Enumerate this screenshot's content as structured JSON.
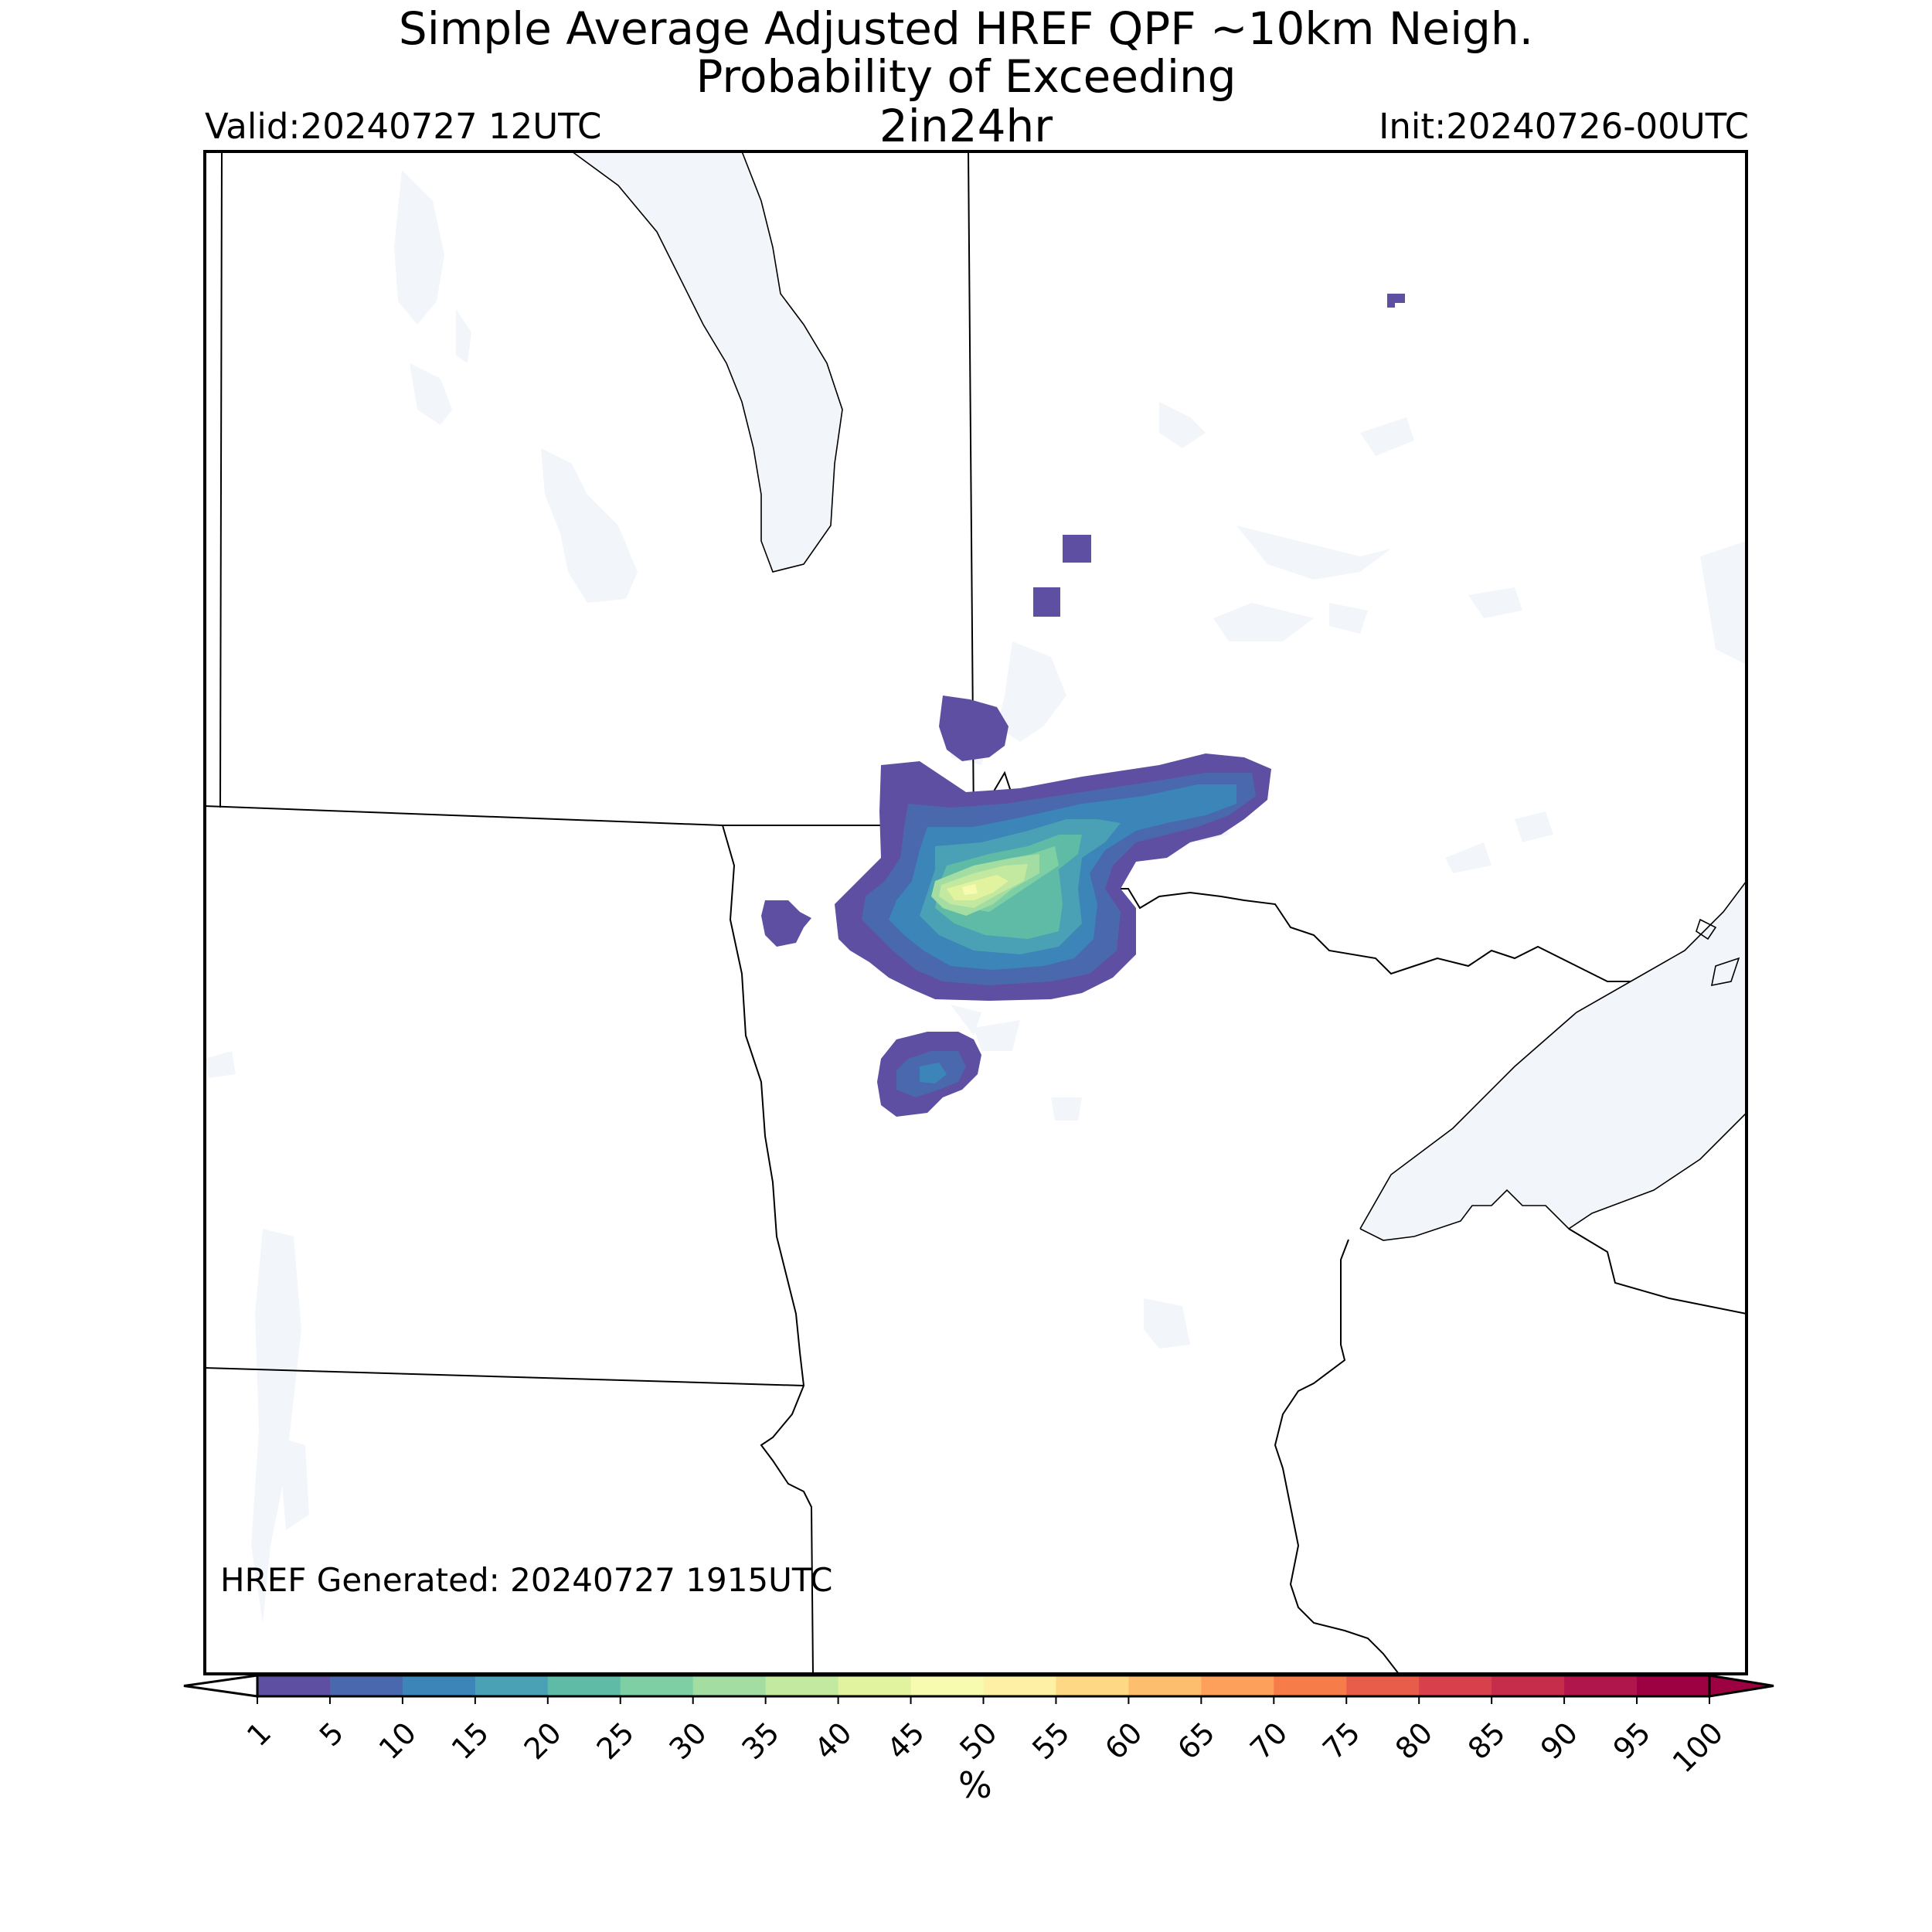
{
  "title": {
    "line1": "Simple Average Adjusted HREF QPF ~10km Neigh.",
    "line2": "Probability of Exceeding",
    "line3": "2in24hr"
  },
  "valid": "Valid:20240727 12UTC",
  "init": "Init:20240726-00UTC",
  "generated": "HREF Generated: 20240727 1915UTC",
  "colorbar": {
    "unit": "%",
    "ticks": [
      "1",
      "5",
      "10",
      "15",
      "20",
      "25",
      "30",
      "35",
      "40",
      "45",
      "50",
      "55",
      "60",
      "65",
      "70",
      "75",
      "80",
      "85",
      "90",
      "95",
      "100"
    ],
    "colors": [
      "#5e4fa2",
      "#4a68ae",
      "#3c85b9",
      "#4aa0b4",
      "#5fbba5",
      "#7ed0a4",
      "#a3dda2",
      "#c3e9a0",
      "#e2f3a0",
      "#f6fbb0",
      "#fef0a5",
      "#fed884",
      "#fdbf6e",
      "#fca05b",
      "#f67d4a",
      "#e85d4a",
      "#d8404c",
      "#c62d4b",
      "#b0164b",
      "#9e0142"
    ],
    "extend": "both"
  },
  "map": {
    "region": "Upper Midwest (Minnesota, North Dakota, Ontario, Manitoba, Lake Superior)",
    "probability_areas": [
      {
        "location": "NW Minnesota / SE Manitoba border",
        "max_percent": 45
      },
      {
        "location": "NW Minnesota (south cluster)",
        "max_percent": 15
      },
      {
        "location": "NW Ontario small cells",
        "max_percent": 5
      }
    ]
  }
}
